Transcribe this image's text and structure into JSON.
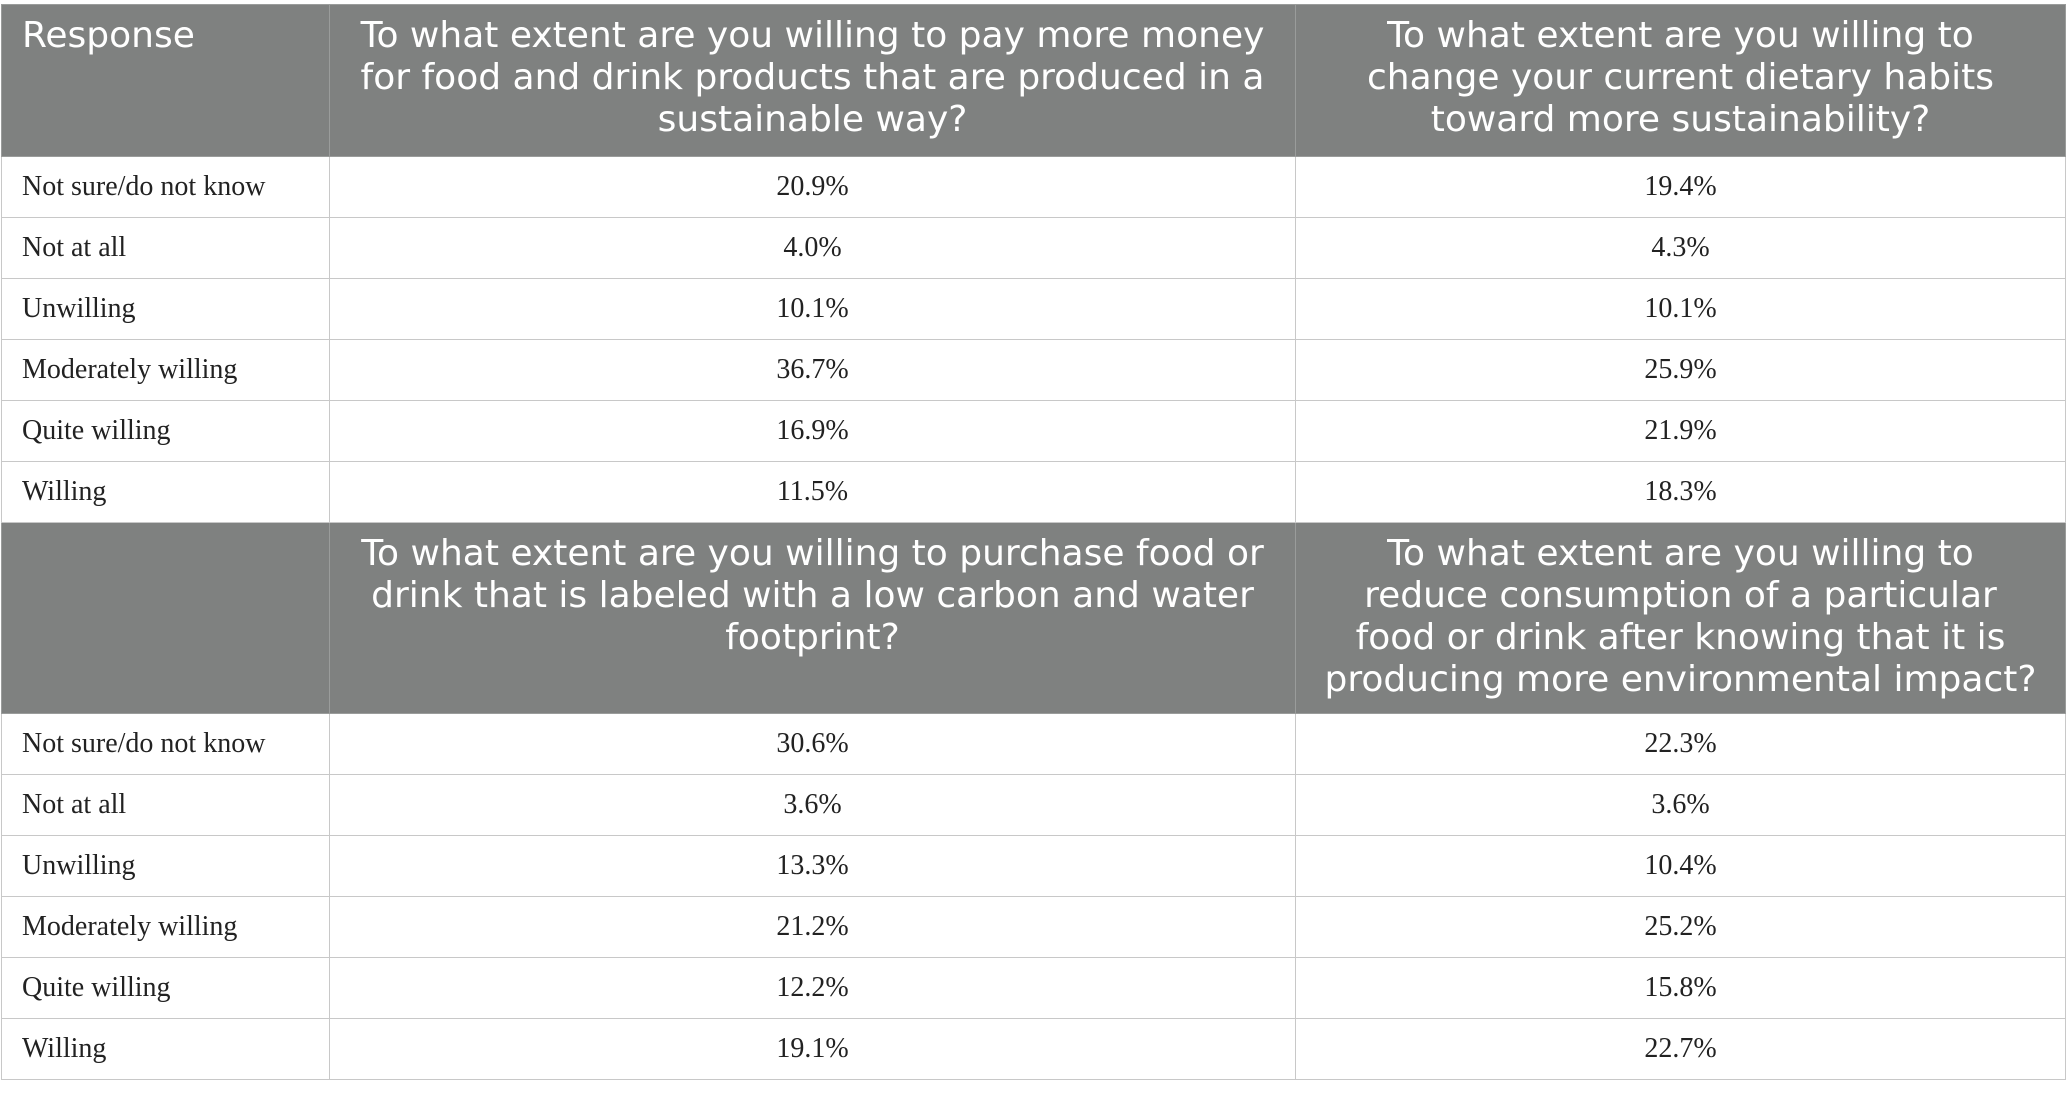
{
  "table": {
    "section1": {
      "header": {
        "response": "Response",
        "q1": "To what extent are you willing to pay more money for food and drink products that are produced in a sustainable way?",
        "q2": "To what extent are you willing to change your current dietary habits toward more sustainability?"
      },
      "rows": [
        {
          "label": "Not sure/do not know",
          "v1": "20.9%",
          "v2": "19.4%"
        },
        {
          "label": "Not at all",
          "v1": "4.0%",
          "v2": "4.3%"
        },
        {
          "label": "Unwilling",
          "v1": "10.1%",
          "v2": "10.1%"
        },
        {
          "label": "Moderately willing",
          "v1": "36.7%",
          "v2": "25.9%"
        },
        {
          "label": "Quite willing",
          "v1": "16.9%",
          "v2": "21.9%"
        },
        {
          "label": "Willing",
          "v1": "11.5%",
          "v2": "18.3%"
        }
      ]
    },
    "section2": {
      "header": {
        "response": "",
        "q1": "To what extent are you willing to purchase food or drink that is labeled with a low carbon and water footprint?",
        "q2": "To what extent are you willing to reduce consumption of a particular food or drink after knowing that it is producing more environmental impact?"
      },
      "rows": [
        {
          "label": "Not sure/do not know",
          "v1": "30.6%",
          "v2": "22.3%"
        },
        {
          "label": "Not at all",
          "v1": "3.6%",
          "v2": "3.6%"
        },
        {
          "label": "Unwilling",
          "v1": "13.3%",
          "v2": "10.4%"
        },
        {
          "label": "Moderately willing",
          "v1": "21.2%",
          "v2": "25.2%"
        },
        {
          "label": "Quite willing",
          "v1": "12.2%",
          "v2": "15.8%"
        },
        {
          "label": "Willing",
          "v1": "19.1%",
          "v2": "22.7%"
        }
      ]
    },
    "colors": {
      "header_bg": "#7f8180",
      "header_text": "#ffffff",
      "grid": "#c8c8c8"
    }
  }
}
